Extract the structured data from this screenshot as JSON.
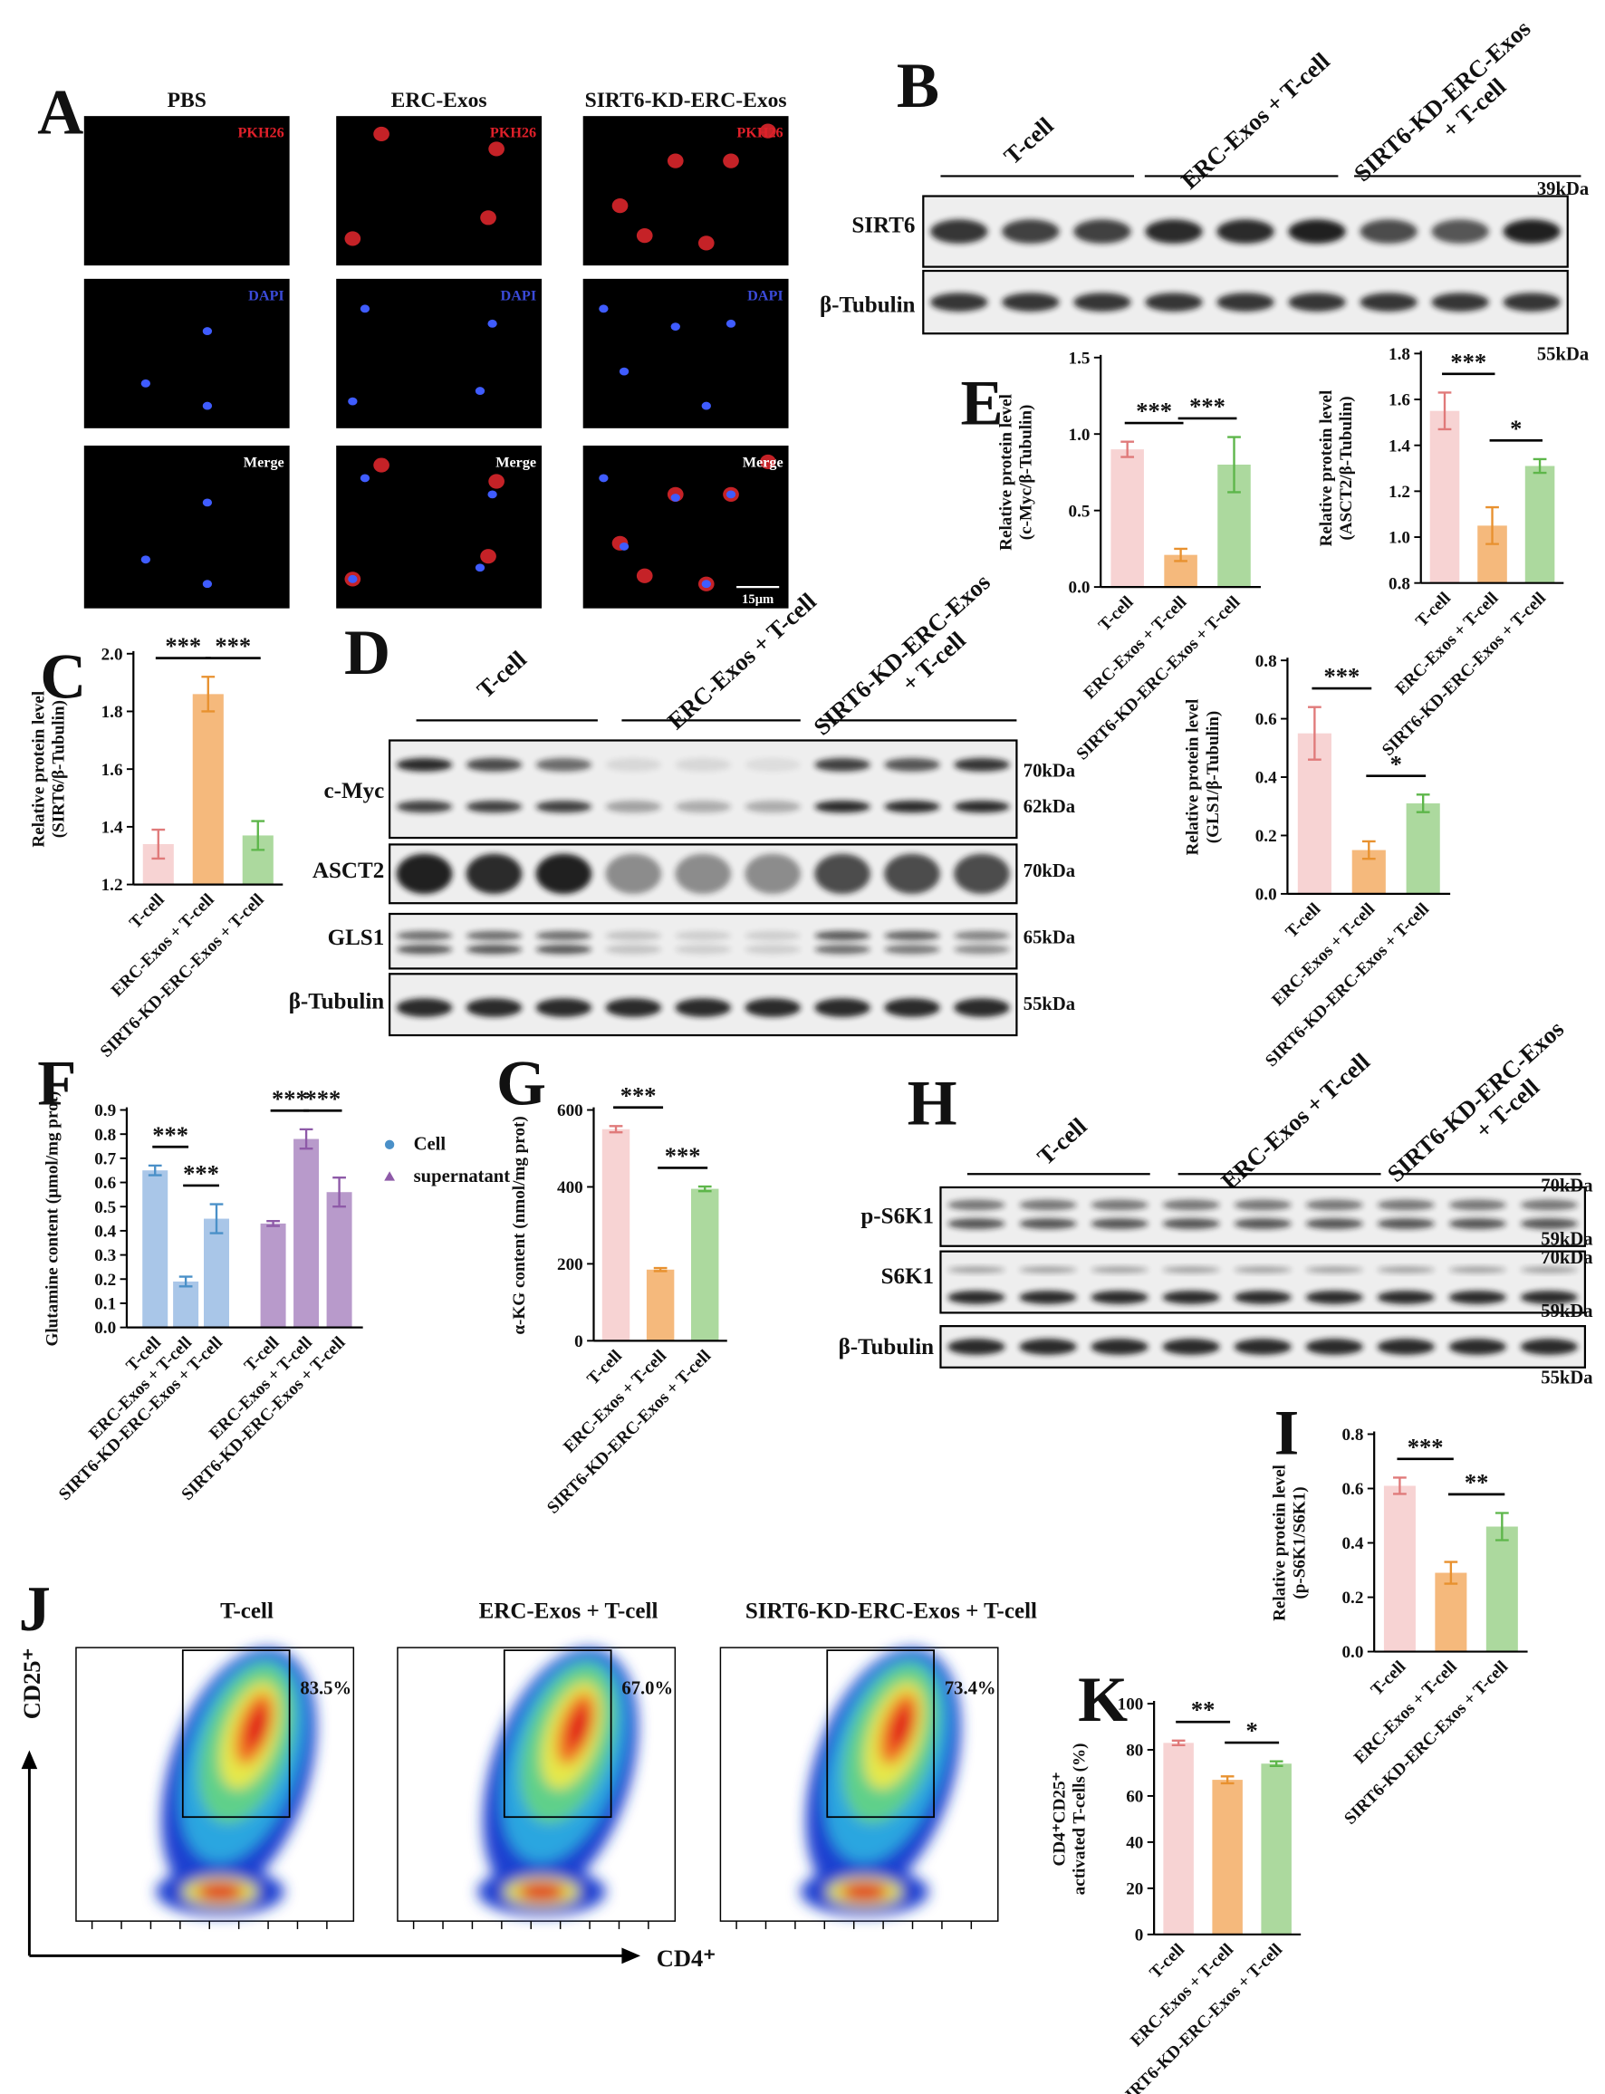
{
  "panel_labels": [
    "A",
    "B",
    "C",
    "D",
    "E",
    "F",
    "G",
    "H",
    "I",
    "J",
    "K"
  ],
  "microscopy": {
    "columns": [
      "PBS",
      "ERC-Exos",
      "SIRT6-KD-ERC-Exos"
    ],
    "rows": [
      "PKH26",
      "DAPI",
      "Merge"
    ],
    "scale_bar": "15μm"
  },
  "blot_B": {
    "groups": [
      [
        "T-cell"
      ],
      [
        "ERC-Exos + T-cell"
      ],
      [
        "SIRT6-KD-ERC-Exos",
        "+ T-cell"
      ]
    ],
    "rows": [
      "SIRT6",
      "β-Tubulin"
    ],
    "sizes": [
      "39kDa",
      "55kDa"
    ]
  },
  "blot_D": {
    "groups": [
      [
        "T-cell"
      ],
      [
        "ERC-Exos + T-cell"
      ],
      [
        "SIRT6-KD-ERC-Exos",
        "+ T-cell"
      ]
    ],
    "rows": [
      "c-Myc",
      "ASCT2",
      "GLS1",
      "β-Tubulin"
    ],
    "sizes": [
      "70kDa",
      "62kDa",
      "70kDa",
      "65kDa",
      "55kDa"
    ]
  },
  "blot_H": {
    "groups": [
      [
        "T-cell"
      ],
      [
        "ERC-Exos + T-cell"
      ],
      [
        "SIRT6-KD-ERC-Exos",
        "+ T-cell"
      ]
    ],
    "rows": [
      "p-S6K1",
      "S6K1",
      "β-Tubulin"
    ],
    "sizes": [
      "70kDa",
      "59kDa",
      "70kDa",
      "59kDa",
      "55kDa"
    ]
  },
  "flow": {
    "titles": [
      "T-cell",
      "ERC-Exos + T-cell",
      "SIRT6-KD-ERC-Exos + T-cell"
    ],
    "percentages": [
      "83.5%",
      "67.0%",
      "73.4%"
    ],
    "y_axis": "CD25⁺",
    "x_axis": "CD4⁺"
  },
  "chart_data": [
    {
      "type": "bar",
      "ylabel": [
        "Relative protein level",
        "(SIRT6/β-Tubulin)"
      ],
      "categories": [
        "T-cell",
        "ERC-Exos + T-cell",
        "SIRT6-KD-ERC-Exos + T-cell"
      ],
      "values": [
        1.34,
        1.86,
        1.37
      ],
      "errors": [
        0.05,
        0.06,
        0.05
      ],
      "colors": [
        "#f7d3d3",
        "#f5b97c",
        "#acd99e"
      ],
      "edge_colors": [
        "#e07a7a",
        "#e8912f",
        "#5db64a"
      ],
      "ylim": [
        1.2,
        2.0
      ],
      "yticks": [
        1.2,
        1.4,
        1.6,
        1.8,
        {
          "value": 2.0,
          "label": "2.0"
        }
      ],
      "annotations": [
        "***",
        "***"
      ]
    },
    {
      "type": "bar",
      "ylabel": [
        "Relative protein level",
        "(c-Myc/β-Tubulin)"
      ],
      "categories": [
        "T-cell",
        "ERC-Exos + T-cell",
        "SIRT6-KD-ERC-Exos + T-cell"
      ],
      "values": [
        0.9,
        0.21,
        0.8
      ],
      "errors": [
        0.05,
        0.04,
        0.18
      ],
      "colors": [
        "#f7d3d3",
        "#f5b97c",
        "#acd99e"
      ],
      "edge_colors": [
        "#e07a7a",
        "#e8912f",
        "#5db64a"
      ],
      "ylim": [
        0,
        1.5
      ],
      "yticks": [
        {
          "value": 0,
          "label": "0.0"
        },
        0.5,
        {
          "value": 1,
          "label": "1.0"
        },
        1.5
      ],
      "annotations": [
        "***",
        "***"
      ]
    },
    {
      "type": "bar",
      "ylabel": [
        "Relative protein level",
        "(ASCT2/β-Tubulin)"
      ],
      "categories": [
        "T-cell",
        "ERC-Exos + T-cell",
        "SIRT6-KD-ERC-Exos + T-cell"
      ],
      "values": [
        1.55,
        1.05,
        1.31
      ],
      "errors": [
        0.08,
        0.08,
        0.03
      ],
      "colors": [
        "#f7d3d3",
        "#f5b97c",
        "#acd99e"
      ],
      "edge_colors": [
        "#e07a7a",
        "#e8912f",
        "#5db64a"
      ],
      "ylim": [
        0.8,
        1.8
      ],
      "yticks": [
        0.8,
        {
          "value": 1,
          "label": "1.0"
        },
        1.2,
        1.4,
        1.6,
        1.8
      ],
      "annotations": [
        "***",
        "*"
      ]
    },
    {
      "type": "bar",
      "ylabel": [
        "Relative protein level",
        "(GLS1/β-Tubulin)"
      ],
      "categories": [
        "T-cell",
        "ERC-Exos + T-cell",
        "SIRT6-KD-ERC-Exos + T-cell"
      ],
      "values": [
        0.55,
        0.15,
        0.31
      ],
      "errors": [
        0.09,
        0.03,
        0.03
      ],
      "colors": [
        "#f7d3d3",
        "#f5b97c",
        "#acd99e"
      ],
      "edge_colors": [
        "#e07a7a",
        "#e8912f",
        "#5db64a"
      ],
      "ylim": [
        0,
        0.8
      ],
      "yticks": [
        {
          "value": 0,
          "label": "0.0"
        },
        0.2,
        0.4,
        0.6,
        0.8
      ],
      "annotations": [
        "***",
        "*"
      ]
    },
    {
      "type": "bar",
      "ylabel": [
        "Glutamine content (μmol/mg prot)"
      ],
      "categories": [
        "T-cell",
        "ERC-Exos + T-cell",
        "SIRT6-KD-ERC-Exos + T-cell",
        "T-cell",
        "ERC-Exos + T-cell",
        "SIRT6-KD-ERC-Exos + T-cell"
      ],
      "series": [
        {
          "name": "Cell",
          "color": "#a9c6e8",
          "edge_color": "#4a90c8",
          "values": [
            0.65,
            0.19,
            0.45,
            null,
            null,
            null
          ],
          "errors": [
            0.02,
            0.02,
            0.06,
            null,
            null,
            null
          ]
        },
        {
          "name": "supernatant",
          "color": "#b89acb",
          "edge_color": "#8e5aa8",
          "values": [
            null,
            null,
            null,
            0.43,
            0.78,
            0.56
          ],
          "errors": [
            null,
            null,
            null,
            0.01,
            0.04,
            0.06
          ]
        }
      ],
      "ylim": [
        0,
        0.9
      ],
      "yticks": [
        {
          "value": 0,
          "label": "0.0"
        },
        0.1,
        0.2,
        0.3,
        0.4,
        0.5,
        0.6,
        0.7,
        0.8,
        0.9
      ],
      "annotations": [
        "***",
        "***",
        "***",
        "***"
      ]
    },
    {
      "type": "bar",
      "ylabel": [
        "α-KG content (nmol/mg prot)"
      ],
      "categories": [
        "T-cell",
        "ERC-Exos + T-cell",
        "SIRT6-KD-ERC-Exos + T-cell"
      ],
      "values": [
        550,
        185,
        395
      ],
      "errors": [
        8,
        4,
        6
      ],
      "colors": [
        "#f7d3d3",
        "#f5b97c",
        "#acd99e"
      ],
      "edge_colors": [
        "#e07a7a",
        "#e8912f",
        "#5db64a"
      ],
      "ylim": [
        0,
        600
      ],
      "yticks": [
        0,
        200,
        400,
        600
      ],
      "annotations": [
        "***",
        "***"
      ]
    },
    {
      "type": "bar",
      "ylabel": [
        "Relative protein level",
        "(p-S6K1/S6K1)"
      ],
      "categories": [
        "T-cell",
        "ERC-Exos + T-cell",
        "SIRT6-KD-ERC-Exos + T-cell"
      ],
      "values": [
        0.61,
        0.29,
        0.46
      ],
      "errors": [
        0.03,
        0.04,
        0.05
      ],
      "colors": [
        "#f7d3d3",
        "#f5b97c",
        "#acd99e"
      ],
      "edge_colors": [
        "#e07a7a",
        "#e8912f",
        "#5db64a"
      ],
      "ylim": [
        0,
        0.8
      ],
      "yticks": [
        {
          "value": 0,
          "label": "0.0"
        },
        0.2,
        0.4,
        0.6,
        0.8
      ],
      "annotations": [
        "***",
        "**"
      ]
    },
    {
      "type": "bar",
      "ylabel": [
        "CD4⁺CD25⁺",
        "activated T-cells (%)"
      ],
      "categories": [
        "T-cell",
        "ERC-Exos + T-cell",
        "SIRT6-KD-ERC-Exos + T-cell"
      ],
      "values": [
        83,
        67,
        74
      ],
      "errors": [
        1,
        1.5,
        1
      ],
      "colors": [
        "#f7d3d3",
        "#f5b97c",
        "#acd99e"
      ],
      "edge_colors": [
        "#e07a7a",
        "#e8912f",
        "#5db64a"
      ],
      "ylim": [
        0,
        100
      ],
      "yticks": [
        0,
        20,
        40,
        60,
        80,
        100
      ],
      "annotations": [
        "**",
        "*"
      ]
    }
  ]
}
